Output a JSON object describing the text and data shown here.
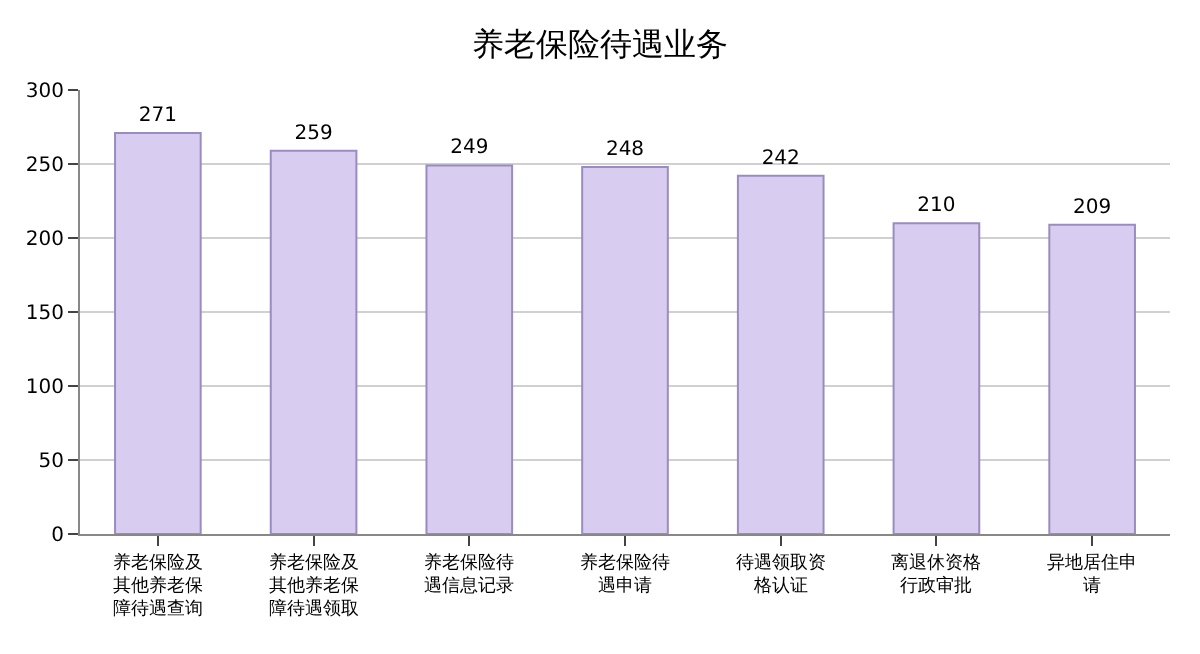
{
  "chart_data": {
    "type": "bar",
    "title": "养老保险待遇业务",
    "categories": [
      "养老保险及其他养老保障待遇查询",
      "养老保险及其他养老保障待遇领取",
      "养老保险待遇信息记录",
      "养老保险待遇申请",
      "待遇领取资格认证",
      "离退休资格行政审批",
      "异地居住申请"
    ],
    "values": [
      271,
      259,
      249,
      248,
      242,
      210,
      209
    ],
    "color": "#d8cdf0",
    "ylim": [
      0,
      300
    ],
    "yticks": [
      0,
      50,
      100,
      150,
      200,
      250,
      300
    ],
    "grid": "y",
    "data_labels": true,
    "legend": false
  }
}
